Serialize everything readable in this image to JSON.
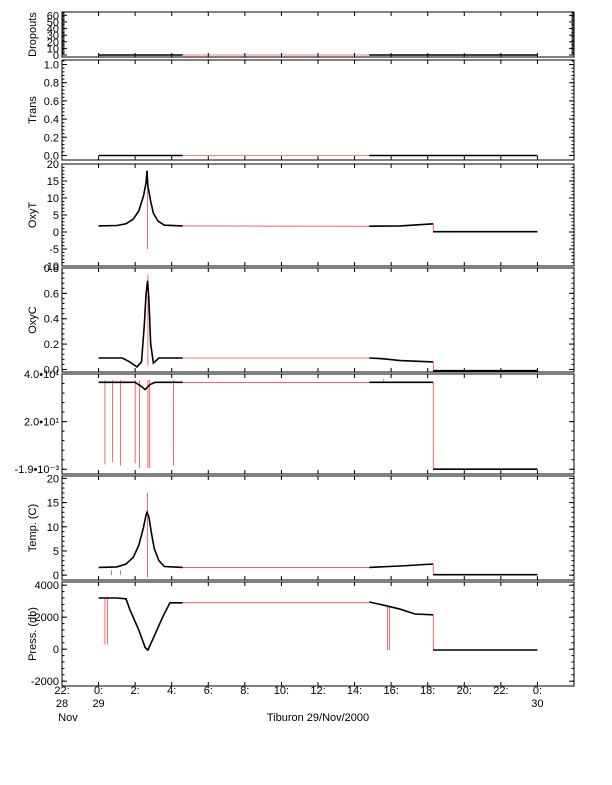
{
  "chart_data": {
    "type": "line",
    "title": "Tiburon 29/Nov/2000",
    "x_axis": {
      "unit": "hour",
      "range": [
        -2,
        26
      ],
      "ticks": [
        {
          "value": -2,
          "line1": "22:",
          "line2": "28",
          "line3": "Nov"
        },
        {
          "value": 0,
          "line1": "0:",
          "line2": "29",
          "line3": ""
        },
        {
          "value": 2,
          "line1": "2:",
          "line2": "",
          "line3": ""
        },
        {
          "value": 4,
          "line1": "4:",
          "line2": "",
          "line3": ""
        },
        {
          "value": 6,
          "line1": "6:",
          "line2": "",
          "line3": ""
        },
        {
          "value": 8,
          "line1": "8:",
          "line2": "",
          "line3": ""
        },
        {
          "value": 10,
          "line1": "10:",
          "line2": "",
          "line3": ""
        },
        {
          "value": 12,
          "line1": "12:",
          "line2": "",
          "line3": ""
        },
        {
          "value": 14,
          "line1": "14:",
          "line2": "",
          "line3": ""
        },
        {
          "value": 16,
          "line1": "16:",
          "line2": "",
          "line3": ""
        },
        {
          "value": 18,
          "line1": "18:",
          "line2": "",
          "line3": ""
        },
        {
          "value": 20,
          "line1": "20:",
          "line2": "",
          "line3": ""
        },
        {
          "value": 22,
          "line1": "22:",
          "line2": "",
          "line3": ""
        },
        {
          "value": 24,
          "line1": "0:",
          "line2": "30",
          "line3": ""
        }
      ]
    },
    "colors": {
      "measured": "#000000",
      "interpolated": "#ff0000"
    },
    "panels": [
      {
        "id": "dropouts",
        "ylabel": "Dropouts",
        "yrange": [
          -3,
          65
        ],
        "yticks": [
          {
            "v": 0,
            "l": "0"
          },
          {
            "v": 10,
            "l": "10"
          },
          {
            "v": 20,
            "l": "20"
          },
          {
            "v": 30,
            "l": "30"
          },
          {
            "v": 40,
            "l": "40"
          },
          {
            "v": 50,
            "l": "50"
          },
          {
            "v": 60,
            "l": "60"
          }
        ],
        "black": [
          [
            [
              0,
              0
            ],
            [
              4.6,
              0
            ]
          ],
          [
            [
              14.8,
              0
            ],
            [
              24,
              0
            ]
          ]
        ],
        "red": [
          [
            [
              4.6,
              0
            ],
            [
              14.8,
              0
            ]
          ]
        ],
        "spikes": []
      },
      {
        "id": "trans",
        "ylabel": "Trans",
        "yrange": [
          -0.05,
          1.05
        ],
        "yticks": [
          {
            "v": 0,
            "l": "0.0"
          },
          {
            "v": 0.2,
            "l": "0.2"
          },
          {
            "v": 0.4,
            "l": "0.4"
          },
          {
            "v": 0.6,
            "l": "0.6"
          },
          {
            "v": 0.8,
            "l": "0.8"
          },
          {
            "v": 1.0,
            "l": "1.0"
          }
        ],
        "black": [
          [
            [
              0,
              0
            ],
            [
              4.6,
              0
            ]
          ],
          [
            [
              14.8,
              0
            ],
            [
              24,
              0
            ]
          ]
        ],
        "red": [
          [
            [
              4.6,
              0
            ],
            [
              14.8,
              0
            ]
          ]
        ],
        "spikes": []
      },
      {
        "id": "oxyt",
        "ylabel": "OxyT",
        "yrange": [
          -10,
          20
        ],
        "yticks": [
          {
            "v": -10,
            "l": "-10"
          },
          {
            "v": -5,
            "l": "-5"
          },
          {
            "v": 0,
            "l": "0"
          },
          {
            "v": 5,
            "l": "5"
          },
          {
            "v": 10,
            "l": "10"
          },
          {
            "v": 15,
            "l": "15"
          },
          {
            "v": 20,
            "l": "20"
          }
        ],
        "black": [
          [
            [
              0,
              1.8
            ],
            [
              1.0,
              1.9
            ],
            [
              1.5,
              2.4
            ],
            [
              1.9,
              3.8
            ],
            [
              2.2,
              6.2
            ],
            [
              2.45,
              10.5
            ],
            [
              2.6,
              14.5
            ],
            [
              2.65,
              18.0
            ],
            [
              2.7,
              13.5
            ],
            [
              2.85,
              9.0
            ],
            [
              3.0,
              5.5
            ],
            [
              3.25,
              3.2
            ],
            [
              3.6,
              2.0
            ],
            [
              4.6,
              1.8
            ]
          ],
          [
            [
              14.8,
              1.7
            ],
            [
              16.5,
              1.8
            ],
            [
              18.3,
              2.4
            ]
          ],
          [
            [
              18.3,
              0.1
            ],
            [
              24,
              0.1
            ]
          ]
        ],
        "red": [
          [
            [
              4.6,
              1.8
            ],
            [
              14.8,
              1.7
            ]
          ],
          [
            [
              18.3,
              2.4
            ],
            [
              18.3,
              0.1
            ]
          ]
        ],
        "spikes": [
          [
            2.68,
            -5,
            18
          ]
        ]
      },
      {
        "id": "oxyc",
        "ylabel": "OxyC",
        "yrange": [
          -0.02,
          0.8
        ],
        "yticks": [
          {
            "v": 0,
            "l": "0.0"
          },
          {
            "v": 0.2,
            "l": "0.2"
          },
          {
            "v": 0.4,
            "l": "0.4"
          },
          {
            "v": 0.6,
            "l": "0.6"
          },
          {
            "v": 0.8,
            "l": "0.8"
          }
        ],
        "black": [
          [
            [
              0,
              0.09
            ],
            [
              1.3,
              0.09
            ],
            [
              1.7,
              0.06
            ],
            [
              2.1,
              0.02
            ],
            [
              2.35,
              0.06
            ],
            [
              2.5,
              0.35
            ],
            [
              2.6,
              0.6
            ],
            [
              2.68,
              0.7
            ],
            [
              2.75,
              0.55
            ],
            [
              2.85,
              0.2
            ],
            [
              3.0,
              0.05
            ],
            [
              3.3,
              0.09
            ],
            [
              4.6,
              0.09
            ]
          ],
          [
            [
              14.8,
              0.09
            ],
            [
              15.5,
              0.085
            ],
            [
              16.5,
              0.07
            ],
            [
              18.3,
              0.06
            ]
          ],
          [
            [
              18.3,
              -0.01
            ],
            [
              24,
              -0.01
            ]
          ]
        ],
        "red": [
          [
            [
              4.6,
              0.09
            ],
            [
              14.8,
              0.09
            ]
          ],
          [
            [
              18.3,
              0.06
            ],
            [
              18.3,
              -0.01
            ]
          ]
        ],
        "spikes": [
          [
            2.7,
            0.03,
            0.75
          ]
        ]
      },
      {
        "id": "raw",
        "ylabel": "",
        "yrange": [
          -2,
          40
        ],
        "yticks": [
          {
            "v": -0.0019,
            "l": "-1.9•10⁻³"
          },
          {
            "v": 20,
            "l": "2.0•10¹"
          },
          {
            "v": 40,
            "l": "4.0•10¹"
          }
        ],
        "black": [
          [
            [
              0,
              36.5
            ],
            [
              2.0,
              36.5
            ],
            [
              2.3,
              35.0
            ],
            [
              2.55,
              33.5
            ],
            [
              2.8,
              35.5
            ],
            [
              3.1,
              36.5
            ],
            [
              4.6,
              36.5
            ]
          ],
          [
            [
              14.8,
              36.5
            ],
            [
              18.3,
              36.5
            ]
          ],
          [
            [
              18.3,
              0.0
            ],
            [
              24,
              0.0
            ]
          ]
        ],
        "red": [
          [
            [
              4.6,
              36.5
            ],
            [
              14.8,
              36.5
            ]
          ],
          [
            [
              18.3,
              36.5
            ],
            [
              18.3,
              0.0
            ]
          ]
        ],
        "spikes": [
          [
            0.35,
            2,
            37.5
          ],
          [
            0.75,
            3,
            37.5
          ],
          [
            1.2,
            1.5,
            37.5
          ],
          [
            2.0,
            2.5,
            37.5
          ],
          [
            2.25,
            0.5,
            37.5
          ],
          [
            2.7,
            0.5,
            37.5
          ],
          [
            2.8,
            0.5,
            37.5
          ],
          [
            4.1,
            1.5,
            37.5
          ],
          [
            15.6,
            36.5,
            38.0
          ]
        ]
      },
      {
        "id": "temp",
        "ylabel": "Temp. (C)",
        "yrange": [
          -1,
          20.5
        ],
        "yticks": [
          {
            "v": 0,
            "l": "0"
          },
          {
            "v": 5,
            "l": "5"
          },
          {
            "v": 10,
            "l": "10"
          },
          {
            "v": 15,
            "l": "15"
          },
          {
            "v": 20,
            "l": "20"
          }
        ],
        "black": [
          [
            [
              0,
              1.6
            ],
            [
              1.0,
              1.7
            ],
            [
              1.5,
              2.3
            ],
            [
              1.9,
              3.7
            ],
            [
              2.2,
              6.2
            ],
            [
              2.45,
              9.8
            ],
            [
              2.6,
              12.5
            ],
            [
              2.65,
              13.0
            ],
            [
              2.75,
              12.0
            ],
            [
              2.9,
              8.5
            ],
            [
              3.05,
              5.5
            ],
            [
              3.3,
              3.0
            ],
            [
              3.6,
              1.8
            ],
            [
              4.6,
              1.6
            ]
          ],
          [
            [
              14.8,
              1.6
            ],
            [
              16.5,
              1.9
            ],
            [
              18.3,
              2.3
            ]
          ],
          [
            [
              18.3,
              0.1
            ],
            [
              24,
              0.1
            ]
          ]
        ],
        "red": [
          [
            [
              4.6,
              1.6
            ],
            [
              14.8,
              1.6
            ]
          ],
          [
            [
              18.3,
              2.3
            ],
            [
              18.3,
              0.1
            ]
          ]
        ],
        "spikes": [
          [
            2.68,
            -0.5,
            17
          ],
          [
            0.7,
            0.0,
            1.0
          ],
          [
            1.2,
            0.0,
            1.0
          ]
        ]
      },
      {
        "id": "press",
        "ylabel": "Press. (db)",
        "yrange": [
          -2300,
          4200
        ],
        "yticks": [
          {
            "v": -2000,
            "l": "-2000"
          },
          {
            "v": 0,
            "l": "0"
          },
          {
            "v": 2000,
            "l": "2000"
          },
          {
            "v": 4000,
            "l": "4000"
          }
        ],
        "black": [
          [
            [
              0,
              3200
            ],
            [
              1.0,
              3200
            ],
            [
              1.5,
              3150
            ],
            [
              1.7,
              2500
            ],
            [
              2.2,
              1200
            ],
            [
              2.55,
              100
            ],
            [
              2.7,
              -50
            ],
            [
              3.0,
              700
            ],
            [
              3.5,
              2000
            ],
            [
              3.9,
              2900
            ],
            [
              4.6,
              2900
            ]
          ],
          [
            [
              14.8,
              2950
            ],
            [
              15.6,
              2750
            ],
            [
              16.5,
              2500
            ],
            [
              17.3,
              2200
            ],
            [
              18.3,
              2150
            ]
          ],
          [
            [
              18.3,
              -50
            ],
            [
              24,
              -50
            ]
          ]
        ],
        "red": [
          [
            [
              4.6,
              2900
            ],
            [
              14.8,
              2900
            ]
          ],
          [
            [
              18.3,
              2150
            ],
            [
              18.3,
              -50
            ]
          ]
        ],
        "spikes": [
          [
            0.35,
            300,
            3200
          ],
          [
            0.5,
            300,
            3200
          ],
          [
            15.8,
            -50,
            2700
          ],
          [
            15.9,
            -50,
            2700
          ]
        ]
      }
    ]
  }
}
